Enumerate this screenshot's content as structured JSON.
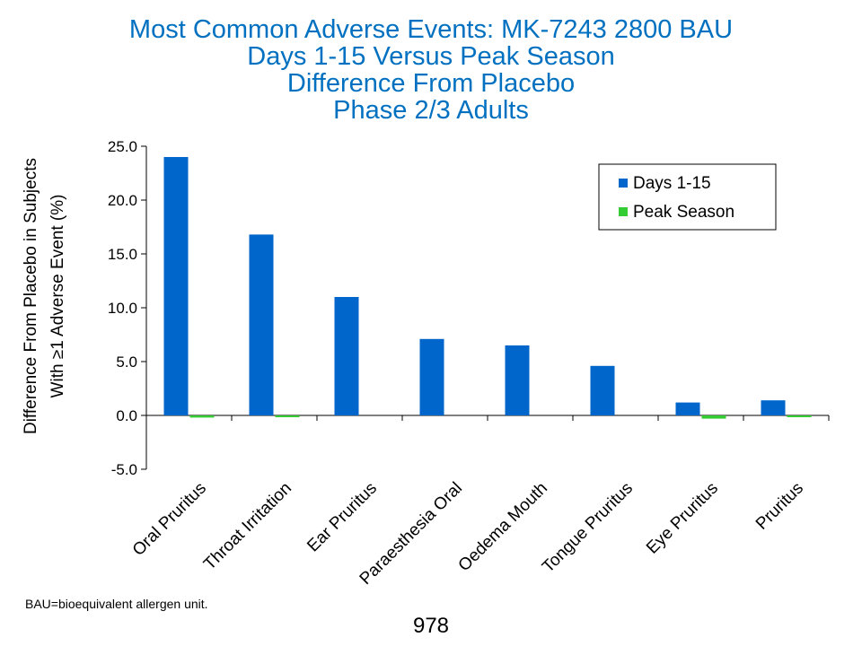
{
  "title_lines": [
    "Most Common Adverse Events: MK-7243 2800 BAU",
    "Days 1-15 Versus Peak Season",
    "Difference From Placebo",
    "Phase 2/3 Adults"
  ],
  "footnote": "BAU=bioequivalent allergen unit.",
  "page_number": "978",
  "colors": {
    "title": "#0070c0",
    "days": "#0066cc",
    "peak": "#33cc33"
  },
  "chart_data": {
    "type": "bar",
    "categories": [
      "Oral Pruritus",
      "Throat Irritation",
      "Ear Pruritus",
      "Paraesthesia Oral",
      "Oedema Mouth",
      "Tongue Pruritus",
      "Eye Pruritus",
      "Pruritus"
    ],
    "series": [
      {
        "name": "Days 1-15",
        "values": [
          24.0,
          16.8,
          11.0,
          7.1,
          6.5,
          4.6,
          1.2,
          1.4
        ]
      },
      {
        "name": "Peak Season",
        "values": [
          -0.2,
          -0.1,
          0.0,
          0.0,
          0.0,
          0.0,
          -0.3,
          -0.1
        ]
      }
    ],
    "ylabel_lines": [
      "Difference From Placebo in Subjects",
      "With ≥1 Adverse Event (%)"
    ],
    "ylim": [
      -5,
      25
    ],
    "yticks": [
      "-5.0",
      "0.0",
      "5.0",
      "10.0",
      "15.0",
      "20.0",
      "25.0"
    ],
    "grid": false,
    "legend_position": "top-right"
  }
}
